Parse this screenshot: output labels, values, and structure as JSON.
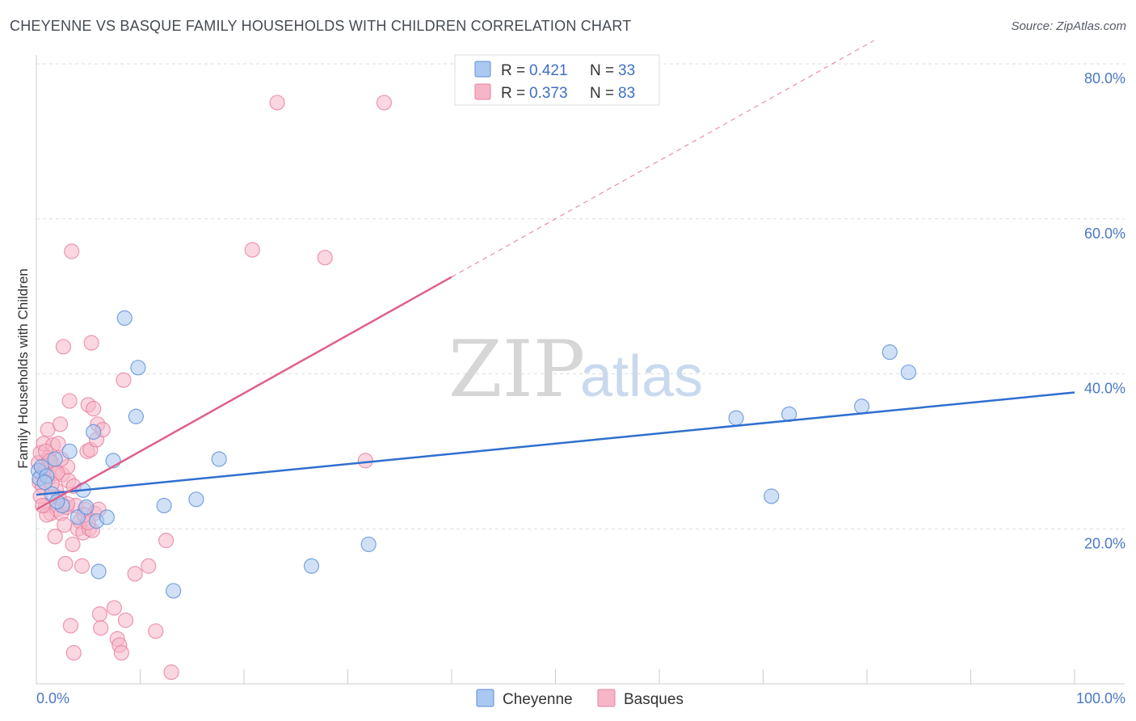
{
  "title": "CHEYENNE VS BASQUE FAMILY HOUSEHOLDS WITH CHILDREN CORRELATION CHART",
  "source": "Source: ZipAtlas.com",
  "watermark": {
    "zip": "ZIP",
    "atlas": "atlas"
  },
  "colors": {
    "cheyenne_fill": "#aac8f0",
    "cheyenne_stroke": "#5b8ed8",
    "cheyenne_line": "#2f6fd0",
    "basques_fill": "#f6b6c8",
    "basques_stroke": "#e87fa0",
    "basques_line": "#e0608a",
    "grid": "#dddddd",
    "tick_text": "#4a78c4"
  },
  "legend": {
    "rows": [
      {
        "r_label": "R =",
        "r_value": "0.421",
        "n_label": "N =",
        "n_value": "33"
      },
      {
        "r_label": "R =",
        "r_value": "0.373",
        "n_label": "N =",
        "n_value": "83"
      }
    ]
  },
  "chart_data": {
    "type": "scatter",
    "title": "CHEYENNE VS BASQUE FAMILY HOUSEHOLDS WITH CHILDREN CORRELATION CHART",
    "xlabel": "",
    "ylabel": "Family Households with Children",
    "xlim": [
      0,
      100
    ],
    "ylim": [
      0,
      80
    ],
    "x_tick_labels": [
      "0.0%",
      "100.0%"
    ],
    "y_tick_labels": [
      "20.0%",
      "40.0%",
      "60.0%",
      "80.0%"
    ],
    "y_ticks": [
      20,
      40,
      60,
      80
    ],
    "series": [
      {
        "name": "Cheyenne",
        "r": 0.421,
        "n": 33,
        "trend": {
          "x0": 0,
          "y0": 24.4,
          "x1": 100,
          "y1": 37.6,
          "dashed_to": null
        },
        "points": [
          [
            0.2,
            27.5
          ],
          [
            0.3,
            26.5
          ],
          [
            0.5,
            28.0
          ],
          [
            1.0,
            26.8
          ],
          [
            1.5,
            24.5
          ],
          [
            1.8,
            29.0
          ],
          [
            2.5,
            23.0
          ],
          [
            3.2,
            30.0
          ],
          [
            4.0,
            21.5
          ],
          [
            4.5,
            25.0
          ],
          [
            4.8,
            22.8
          ],
          [
            5.5,
            32.5
          ],
          [
            5.8,
            21.0
          ],
          [
            6.0,
            14.5
          ],
          [
            6.8,
            21.5
          ],
          [
            7.4,
            28.8
          ],
          [
            8.5,
            47.2
          ],
          [
            9.6,
            34.5
          ],
          [
            9.8,
            40.8
          ],
          [
            12.3,
            23.0
          ],
          [
            13.2,
            12.0
          ],
          [
            15.4,
            23.8
          ],
          [
            17.6,
            29.0
          ],
          [
            26.5,
            15.2
          ],
          [
            32.0,
            18.0
          ],
          [
            67.4,
            34.3
          ],
          [
            70.8,
            24.2
          ],
          [
            72.5,
            34.8
          ],
          [
            79.5,
            35.8
          ],
          [
            82.2,
            42.8
          ],
          [
            84.0,
            40.2
          ],
          [
            0.8,
            26.0
          ],
          [
            2.0,
            23.5
          ]
        ]
      },
      {
        "name": "Basques",
        "r": 0.373,
        "n": 83,
        "trend": {
          "x0": 0,
          "y0": 22.5,
          "x1": 40,
          "y1": 52.5,
          "dash_x1": 100,
          "dash_y1": 97.5
        },
        "points": [
          [
            0.2,
            28.5
          ],
          [
            0.3,
            26.0
          ],
          [
            0.4,
            29.8
          ],
          [
            0.5,
            27.0
          ],
          [
            0.6,
            25.5
          ],
          [
            0.7,
            31.0
          ],
          [
            0.8,
            28.0
          ],
          [
            0.9,
            23.0
          ],
          [
            1.0,
            27.8
          ],
          [
            1.1,
            32.8
          ],
          [
            1.2,
            29.2
          ],
          [
            1.3,
            26.8
          ],
          [
            1.4,
            22.0
          ],
          [
            1.5,
            28.5
          ],
          [
            1.6,
            30.8
          ],
          [
            1.7,
            27.2
          ],
          [
            1.8,
            19.0
          ],
          [
            1.9,
            25.0
          ],
          [
            2.0,
            22.5
          ],
          [
            2.1,
            31.0
          ],
          [
            2.2,
            24.0
          ],
          [
            2.3,
            33.5
          ],
          [
            2.4,
            22.0
          ],
          [
            2.5,
            27.0
          ],
          [
            2.6,
            43.5
          ],
          [
            2.7,
            20.5
          ],
          [
            2.8,
            15.5
          ],
          [
            2.9,
            22.8
          ],
          [
            3.0,
            28.0
          ],
          [
            3.1,
            26.2
          ],
          [
            3.2,
            36.5
          ],
          [
            3.3,
            7.5
          ],
          [
            3.4,
            55.8
          ],
          [
            3.5,
            18.0
          ],
          [
            3.6,
            4.0
          ],
          [
            3.8,
            23.0
          ],
          [
            4.0,
            20.0
          ],
          [
            4.2,
            21.0
          ],
          [
            4.4,
            15.2
          ],
          [
            4.5,
            19.5
          ],
          [
            4.7,
            22.5
          ],
          [
            4.9,
            30.0
          ],
          [
            5.0,
            36.0
          ],
          [
            5.1,
            20.0
          ],
          [
            5.2,
            30.2
          ],
          [
            5.3,
            44.0
          ],
          [
            5.4,
            19.8
          ],
          [
            5.5,
            35.5
          ],
          [
            5.6,
            22.0
          ],
          [
            5.8,
            31.5
          ],
          [
            5.9,
            33.5
          ],
          [
            6.0,
            22.5
          ],
          [
            6.1,
            9.0
          ],
          [
            6.2,
            7.2
          ],
          [
            6.4,
            32.8
          ],
          [
            7.5,
            9.8
          ],
          [
            7.8,
            5.8
          ],
          [
            8.0,
            5.0
          ],
          [
            8.2,
            4.0
          ],
          [
            8.4,
            39.2
          ],
          [
            8.6,
            8.2
          ],
          [
            9.5,
            14.2
          ],
          [
            10.8,
            15.2
          ],
          [
            11.5,
            6.8
          ],
          [
            12.5,
            18.5
          ],
          [
            13.0,
            1.5
          ],
          [
            20.8,
            56.0
          ],
          [
            23.2,
            75.0
          ],
          [
            27.8,
            55.0
          ],
          [
            31.7,
            28.8
          ],
          [
            33.5,
            75.0
          ],
          [
            0.4,
            24.2
          ],
          [
            1.0,
            21.8
          ],
          [
            2.0,
            27.2
          ],
          [
            3.0,
            23.2
          ],
          [
            4.6,
            21.8
          ],
          [
            5.0,
            20.8
          ],
          [
            1.5,
            25.8
          ],
          [
            0.9,
            30.0
          ],
          [
            2.4,
            29.0
          ],
          [
            3.6,
            25.5
          ],
          [
            0.6,
            23.0
          ],
          [
            1.3,
            28.8
          ]
        ]
      }
    ],
    "legend_position": "top-center"
  }
}
